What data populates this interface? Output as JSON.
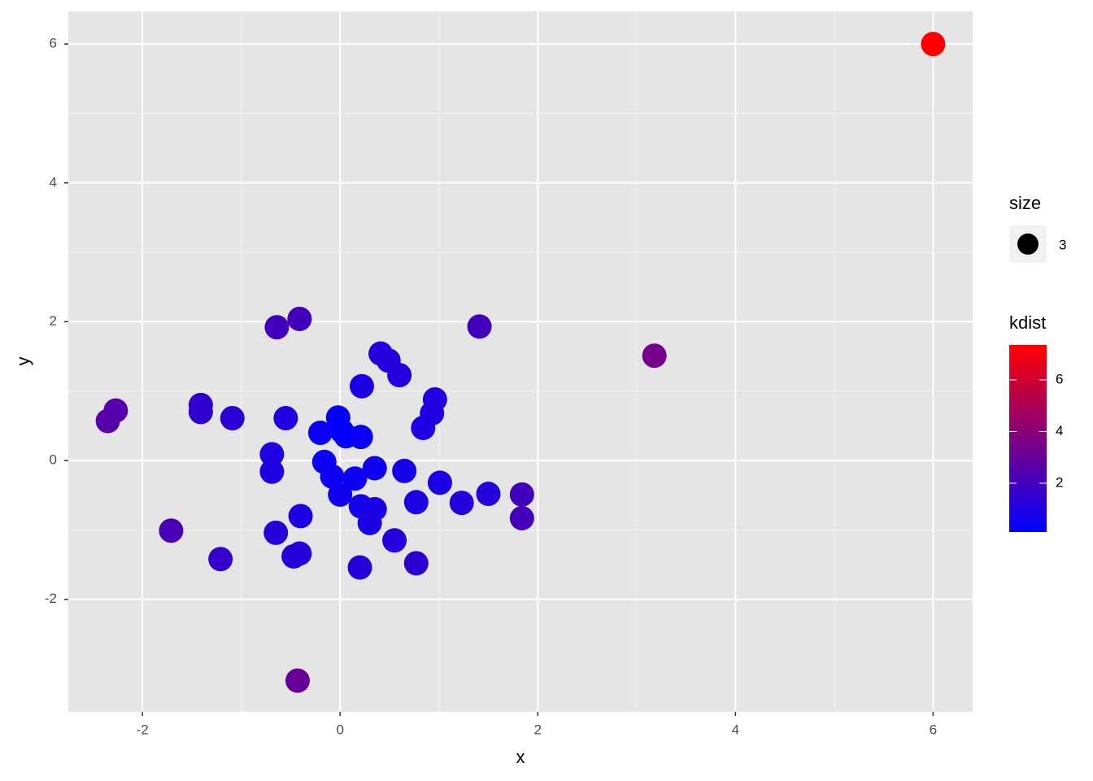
{
  "chart_data": {
    "type": "scatter",
    "x_label": "x",
    "y_label": "y",
    "xlim": [
      -2.75,
      6.4
    ],
    "ylim": [
      -3.62,
      6.47
    ],
    "xticks": [
      -2,
      0,
      2,
      4,
      6
    ],
    "yticks": [
      -2,
      0,
      2,
      4,
      6
    ],
    "grid": true,
    "minor_grid": true,
    "background": "#e5e5e5",
    "x": [
      6.0,
      3.18,
      -0.43,
      -2.35,
      -2.27,
      -1.71,
      -0.64,
      -0.41,
      1.41,
      1.84,
      1.84,
      -1.21,
      -1.41,
      -1.41,
      -1.09,
      -0.55,
      -0.69,
      -0.69,
      -0.65,
      -0.47,
      -0.41,
      -0.4,
      -0.2,
      -0.02,
      0.02,
      0.06,
      0.21,
      -0.16,
      -0.08,
      0.0,
      0.15,
      0.35,
      0.22,
      0.41,
      0.49,
      0.6,
      0.96,
      0.93,
      0.84,
      0.65,
      1.01,
      1.23,
      1.5,
      0.77,
      0.21,
      0.35,
      0.3,
      0.55,
      0.77,
      0.2
    ],
    "values": [
      6.0,
      1.51,
      -3.17,
      0.57,
      0.72,
      -1.01,
      1.92,
      2.04,
      1.93,
      -0.49,
      -0.83,
      -1.42,
      0.8,
      0.7,
      0.61,
      0.61,
      0.09,
      -0.16,
      -1.04,
      -1.38,
      -1.34,
      -0.8,
      0.4,
      0.62,
      0.42,
      0.35,
      0.34,
      -0.02,
      -0.23,
      -0.49,
      -0.26,
      -0.11,
      1.07,
      1.54,
      1.44,
      1.23,
      0.88,
      0.68,
      0.47,
      -0.15,
      -0.32,
      -0.61,
      -0.48,
      -0.6,
      -0.66,
      -0.7,
      -0.9,
      -1.15,
      -1.48,
      -1.54
    ],
    "kdist": [
      7.35,
      3.4,
      3.0,
      2.6,
      2.5,
      2.2,
      2.0,
      2.0,
      2.0,
      2.0,
      2.0,
      1.6,
      1.5,
      1.5,
      1.3,
      1.0,
      1.0,
      1.0,
      1.2,
      1.2,
      1.2,
      0.9,
      0.4,
      0.3,
      0.15,
      0.2,
      0.4,
      0.4,
      0.5,
      0.6,
      0.5,
      0.5,
      0.9,
      1.1,
      1.1,
      1.1,
      1.0,
      1.0,
      0.9,
      0.7,
      0.9,
      1.1,
      1.2,
      0.9,
      0.7,
      0.8,
      0.9,
      1.1,
      1.4,
      1.2
    ],
    "size_legend": {
      "title": "size",
      "value": 3
    },
    "color_legend": {
      "title": "kdist",
      "lim": [
        0.11,
        7.35
      ],
      "ticks": [
        2,
        4,
        6
      ],
      "low": "#0000ff",
      "high": "#ff0000"
    }
  }
}
